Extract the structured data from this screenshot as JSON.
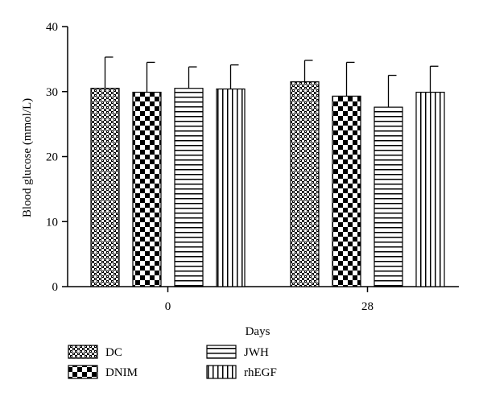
{
  "chart_data": {
    "type": "bar",
    "categories": [
      "0",
      "28"
    ],
    "series": [
      {
        "name": "DC",
        "pattern": "crosshatch",
        "values": [
          30.5,
          31.5
        ],
        "errors": [
          4.8,
          3.3
        ]
      },
      {
        "name": "DNIM",
        "pattern": "checker",
        "values": [
          29.9,
          29.3
        ],
        "errors": [
          4.6,
          5.2
        ]
      },
      {
        "name": "JWH",
        "pattern": "horizontal",
        "values": [
          30.5,
          27.6
        ],
        "errors": [
          3.3,
          4.9
        ]
      },
      {
        "name": "rhEGF",
        "pattern": "vertical",
        "values": [
          30.4,
          29.9
        ],
        "errors": [
          3.7,
          4.0
        ]
      }
    ],
    "xlabel": "Days",
    "ylabel": "Blood glucose (mmol/L)",
    "ylim": [
      0,
      40
    ],
    "yticks": [
      "0",
      "10",
      "20",
      "30",
      "40"
    ],
    "grid": false,
    "legend_position": "bottom",
    "colors": {
      "ink": "#000000",
      "background": "#ffffff"
    }
  }
}
